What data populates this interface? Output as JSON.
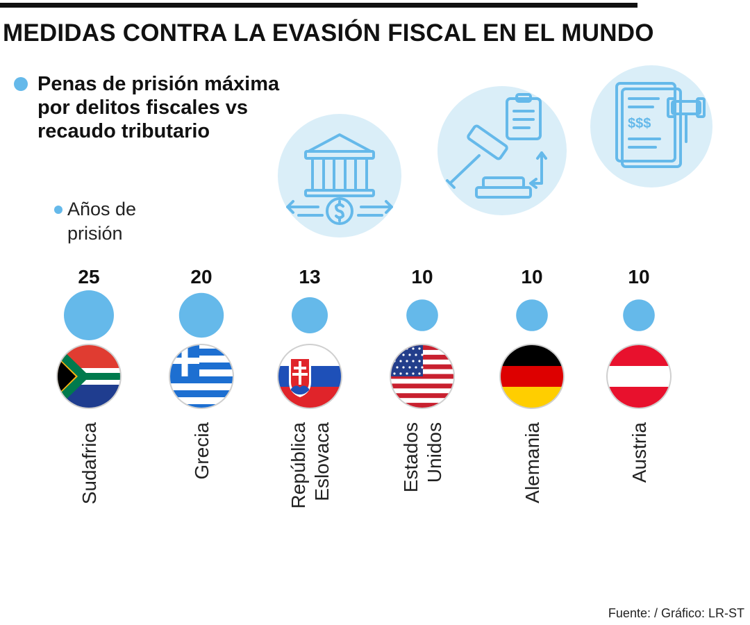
{
  "title": "MEDIDAS CONTRA LA EVASIÓN FISCAL EN EL MUNDO",
  "subtitle_lines": [
    "Penas de prisión máxima",
    "por delitos fiscales vs",
    "recaudo tributario"
  ],
  "legend": {
    "label_lines": [
      "Años de",
      "prisión"
    ],
    "color": "#65b9ea"
  },
  "icons": [
    "bank-building-icon",
    "gavel-clipboard-icon",
    "tax-document-gavel-icon"
  ],
  "chart_data": {
    "type": "bubble",
    "ylabel": "Años de prisión",
    "categories": [
      {
        "name_lines": [
          "Sudafrica"
        ],
        "value": 25,
        "flag": "south-africa-flag-icon"
      },
      {
        "name_lines": [
          "Grecia"
        ],
        "value": 20,
        "flag": "greece-flag-icon"
      },
      {
        "name_lines": [
          "República",
          "Eslovaca"
        ],
        "value": 13,
        "flag": "slovakia-flag-icon"
      },
      {
        "name_lines": [
          "Estados",
          "Unidos"
        ],
        "value": 10,
        "flag": "usa-flag-icon"
      },
      {
        "name_lines": [
          "Alemania"
        ],
        "value": 10,
        "flag": "germany-flag-icon"
      },
      {
        "name_lines": [
          "Austria"
        ],
        "value": 10,
        "flag": "austria-flag-icon"
      }
    ],
    "bubble_color": "#65b9ea"
  },
  "footer": "Fuente: / Gráfico: LR-ST"
}
